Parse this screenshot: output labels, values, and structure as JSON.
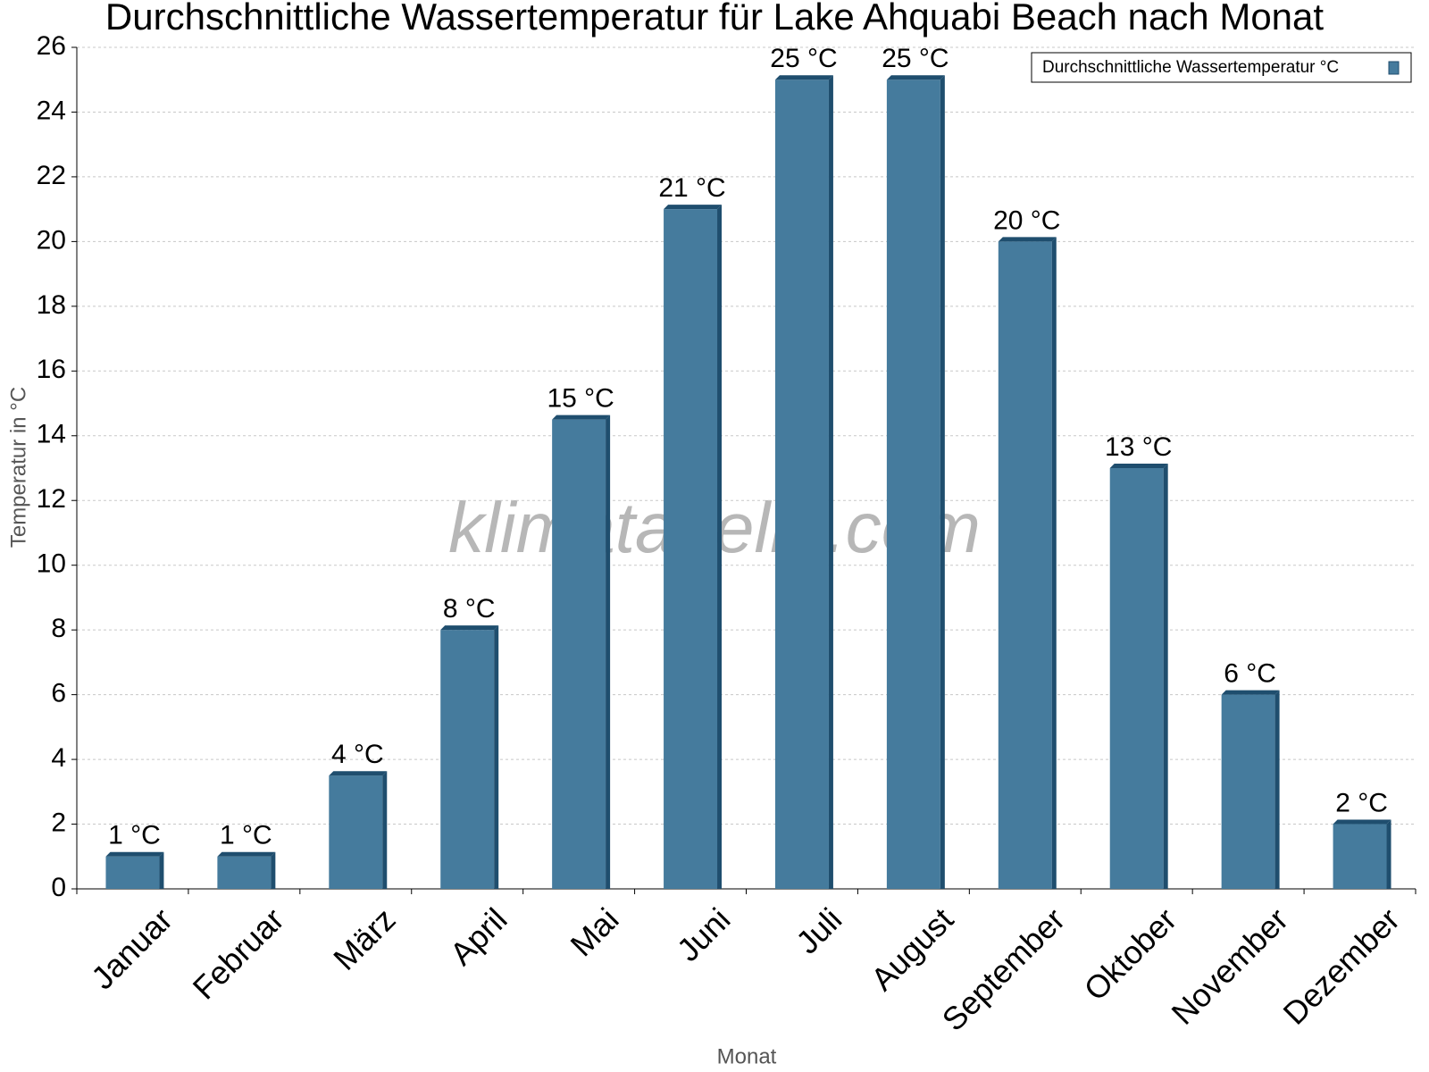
{
  "chart_data": {
    "type": "bar",
    "title": "Durchschnittliche Wassertemperatur für Lake Ahquabi Beach nach Monat",
    "watermark": "klimatabelle.com",
    "x_label": "Monat",
    "y_label": "Temperatur in °C",
    "categories": [
      "Januar",
      "Februar",
      "März",
      "April",
      "Mai",
      "Juni",
      "Juli",
      "August",
      "September",
      "Oktober",
      "November",
      "Dezember"
    ],
    "series": [
      {
        "name": "Durchschnittliche Wassertemperatur °C",
        "color": "#457b9d",
        "values": [
          1,
          1,
          3.5,
          8,
          14.5,
          21,
          25,
          25,
          20,
          13,
          6,
          2
        ],
        "value_labels": [
          "1 °C",
          "1 °C",
          "4 °C",
          "8 °C",
          "15 °C",
          "21 °C",
          "25 °C",
          "25 °C",
          "20 °C",
          "13 °C",
          "6 °C",
          "2 °C"
        ]
      }
    ],
    "ylim": [
      0,
      26
    ],
    "yticks": [
      0,
      2,
      4,
      6,
      8,
      10,
      12,
      14,
      16,
      18,
      20,
      22,
      24,
      26
    ],
    "grid": true,
    "legend": "top-right"
  }
}
